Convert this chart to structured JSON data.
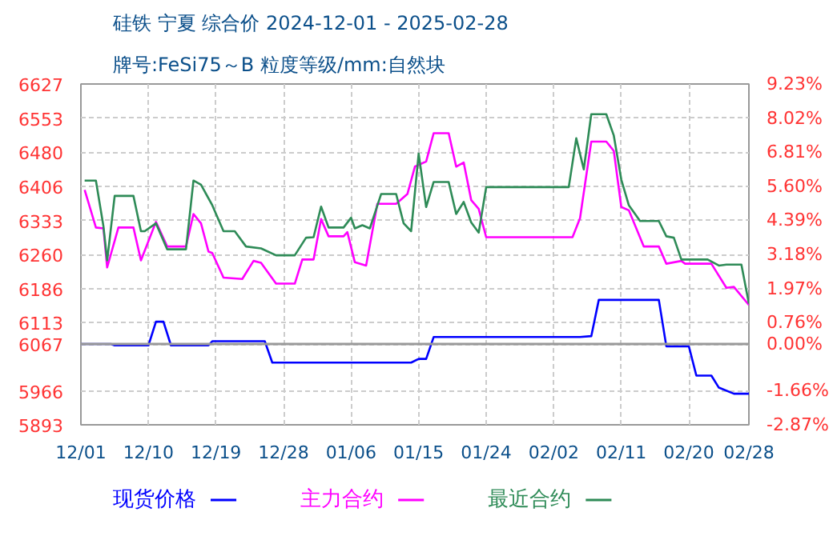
{
  "chart_data": {
    "type": "line",
    "title": "硅铁 宁夏 综合价 2024-12-01 - 2025-02-28",
    "subtitle": "牌号:FeSi75～B 粒度等级/mm:自然块",
    "xlim": [
      "2024-12-01",
      "2025-02-28"
    ],
    "xticks": [
      {
        "value": "2024-12-01",
        "label": "12/01"
      },
      {
        "value": "2024-12-10",
        "label": "12/10"
      },
      {
        "value": "2024-12-19",
        "label": "12/19"
      },
      {
        "value": "2024-12-28",
        "label": "12/28"
      },
      {
        "value": "2025-01-06",
        "label": "01/06"
      },
      {
        "value": "2025-01-15",
        "label": "01/15"
      },
      {
        "value": "2025-01-24",
        "label": "01/24"
      },
      {
        "value": "2025-02-02",
        "label": "02/02"
      },
      {
        "value": "2025-02-11",
        "label": "02/11"
      },
      {
        "value": "2025-02-20",
        "label": "02/20"
      },
      {
        "value": "2025-02-28",
        "label": "02/28"
      }
    ],
    "ylim": [
      5893,
      6627
    ],
    "yticks": [
      5893,
      5966,
      6067,
      6113,
      6186,
      6260,
      6333,
      6406,
      6480,
      6553,
      6627
    ],
    "y2lim": [
      -2.87,
      9.23
    ],
    "y2ticks": [
      {
        "value": -2.87,
        "label": "-2.87%"
      },
      {
        "value": -1.66,
        "label": "-1.66%"
      },
      {
        "value": 0,
        "label": "0.00%"
      },
      {
        "value": 0.76,
        "label": "0.76%"
      },
      {
        "value": 1.97,
        "label": "1.97%"
      },
      {
        "value": 3.18,
        "label": "3.18%"
      },
      {
        "value": 4.39,
        "label": "4.39%"
      },
      {
        "value": 5.6,
        "label": "5.60%"
      },
      {
        "value": 6.81,
        "label": "6.81%"
      },
      {
        "value": 8.02,
        "label": "8.02%"
      },
      {
        "value": 9.23,
        "label": "9.23%"
      }
    ],
    "ref_lines": [
      {
        "axis": "y",
        "value": 6067,
        "color": "#999999",
        "line_style": "solid"
      }
    ],
    "grid": true,
    "legend": "bottom",
    "marker": "none",
    "line_style": "solid",
    "series": [
      {
        "name": "现货价格",
        "color": "#0000ff",
        "x": [
          "2024-12-01",
          "2024-12-05",
          "2024-12-05T12:00",
          "2024-12-10",
          "2024-12-11",
          "2024-12-12",
          "2024-12-13",
          "2024-12-18",
          "2024-12-18T12:00",
          "2024-12-25T12:00",
          "2024-12-26T12:00",
          "2025-01-14",
          "2025-01-15",
          "2025-01-16",
          "2025-01-17",
          "2025-02-05T12:00",
          "2025-02-07",
          "2025-02-08",
          "2025-02-16",
          "2025-02-17",
          "2025-02-20",
          "2025-02-21",
          "2025-02-23",
          "2025-02-24",
          "2025-02-26",
          "2025-02-28"
        ],
        "values": [
          6067,
          6067,
          6064,
          6064,
          6115,
          6115,
          6064,
          6064,
          6073,
          6073,
          6027,
          6027,
          6035,
          6035,
          6082,
          6082,
          6084,
          6162,
          6162,
          6062,
          6062,
          5999,
          5999,
          5973,
          5960,
          5960
        ]
      },
      {
        "name": "主力合约",
        "color": "#ff00ff",
        "x": [
          "2024-12-01T12:00",
          "2024-12-03",
          "2024-12-04",
          "2024-12-04T12:00",
          "2024-12-06",
          "2024-12-08",
          "2024-12-09",
          "2024-12-11",
          "2024-12-12T12:00",
          "2024-12-15",
          "2024-12-16",
          "2024-12-17",
          "2024-12-18",
          "2024-12-18T12:00",
          "2024-12-20",
          "2024-12-22T12:00",
          "2024-12-24",
          "2024-12-25",
          "2024-12-27",
          "2024-12-29T12:00",
          "2024-12-30T12:00",
          "2025-01-01",
          "2025-01-02",
          "2025-01-03",
          "2025-01-05",
          "2025-01-05T12:00",
          "2025-01-06T12:00",
          "2025-01-08",
          "2025-01-09T12:00",
          "2025-01-12",
          "2025-01-13T12:00",
          "2025-01-14T12:00",
          "2025-01-16",
          "2025-01-17",
          "2025-01-19",
          "2025-01-20",
          "2025-01-21",
          "2025-01-22",
          "2025-01-23",
          "2025-01-24",
          "2025-02-04T12:00",
          "2025-02-05T12:00",
          "2025-02-07",
          "2025-02-09",
          "2025-02-10",
          "2025-02-11",
          "2025-02-12",
          "2025-02-14",
          "2025-02-16",
          "2025-02-17",
          "2025-02-19",
          "2025-02-19T12:00",
          "2025-02-23",
          "2025-02-25",
          "2025-02-26",
          "2025-02-28"
        ],
        "values": [
          6399,
          6318,
          6316,
          6232,
          6318,
          6318,
          6247,
          6330,
          6277,
          6277,
          6347,
          6327,
          6266,
          6263,
          6210,
          6207,
          6246,
          6242,
          6197,
          6197,
          6249,
          6249,
          6336,
          6299,
          6299,
          6308,
          6243,
          6236,
          6369,
          6369,
          6390,
          6449,
          6460,
          6521,
          6521,
          6449,
          6458,
          6377,
          6358,
          6297,
          6297,
          6338,
          6503,
          6503,
          6483,
          6362,
          6355,
          6277,
          6277,
          6240,
          6246,
          6240,
          6240,
          6188,
          6190,
          6151
        ]
      },
      {
        "name": "最近合约",
        "color": "#2e8b57",
        "x": [
          "2024-12-01T12:00",
          "2024-12-03",
          "2024-12-04",
          "2024-12-04T12:00",
          "2024-12-05T12:00",
          "2024-12-08",
          "2024-12-09",
          "2024-12-09T12:00",
          "2024-12-11",
          "2024-12-12T12:00",
          "2024-12-15",
          "2024-12-16",
          "2024-12-17",
          "2024-12-18T12:00",
          "2024-12-20",
          "2024-12-21T12:00",
          "2024-12-23",
          "2024-12-25",
          "2024-12-27",
          "2024-12-29T12:00",
          "2024-12-31",
          "2025-01-01",
          "2025-01-02",
          "2025-01-03",
          "2025-01-05",
          "2025-01-06",
          "2025-01-06T12:00",
          "2025-01-07T12:00",
          "2025-01-08T12:00",
          "2025-01-10",
          "2025-01-12",
          "2025-01-13",
          "2025-01-14",
          "2025-01-15",
          "2025-01-16",
          "2025-01-17",
          "2025-01-19",
          "2025-01-20",
          "2025-01-21",
          "2025-01-22",
          "2025-01-23",
          "2025-01-24",
          "2025-02-04",
          "2025-02-05",
          "2025-02-06",
          "2025-02-07",
          "2025-02-09",
          "2025-02-10",
          "2025-02-11",
          "2025-02-12",
          "2025-02-13T12:00",
          "2025-02-16",
          "2025-02-17",
          "2025-02-18",
          "2025-02-19",
          "2025-02-22T12:00",
          "2025-02-24",
          "2025-02-25",
          "2025-02-27",
          "2025-02-28"
        ],
        "values": [
          6419,
          6419,
          6321,
          6247,
          6386,
          6386,
          6310,
          6310,
          6327,
          6271,
          6271,
          6419,
          6410,
          6366,
          6310,
          6310,
          6277,
          6273,
          6258,
          6258,
          6296,
          6297,
          6363,
          6318,
          6318,
          6339,
          6316,
          6323,
          6316,
          6390,
          6390,
          6327,
          6310,
          6477,
          6362,
          6416,
          6416,
          6347,
          6373,
          6329,
          6307,
          6405,
          6405,
          6510,
          6443,
          6562,
          6562,
          6516,
          6421,
          6366,
          6332,
          6332,
          6299,
          6296,
          6249,
          6249,
          6236,
          6238,
          6238,
          6154
        ]
      }
    ]
  }
}
